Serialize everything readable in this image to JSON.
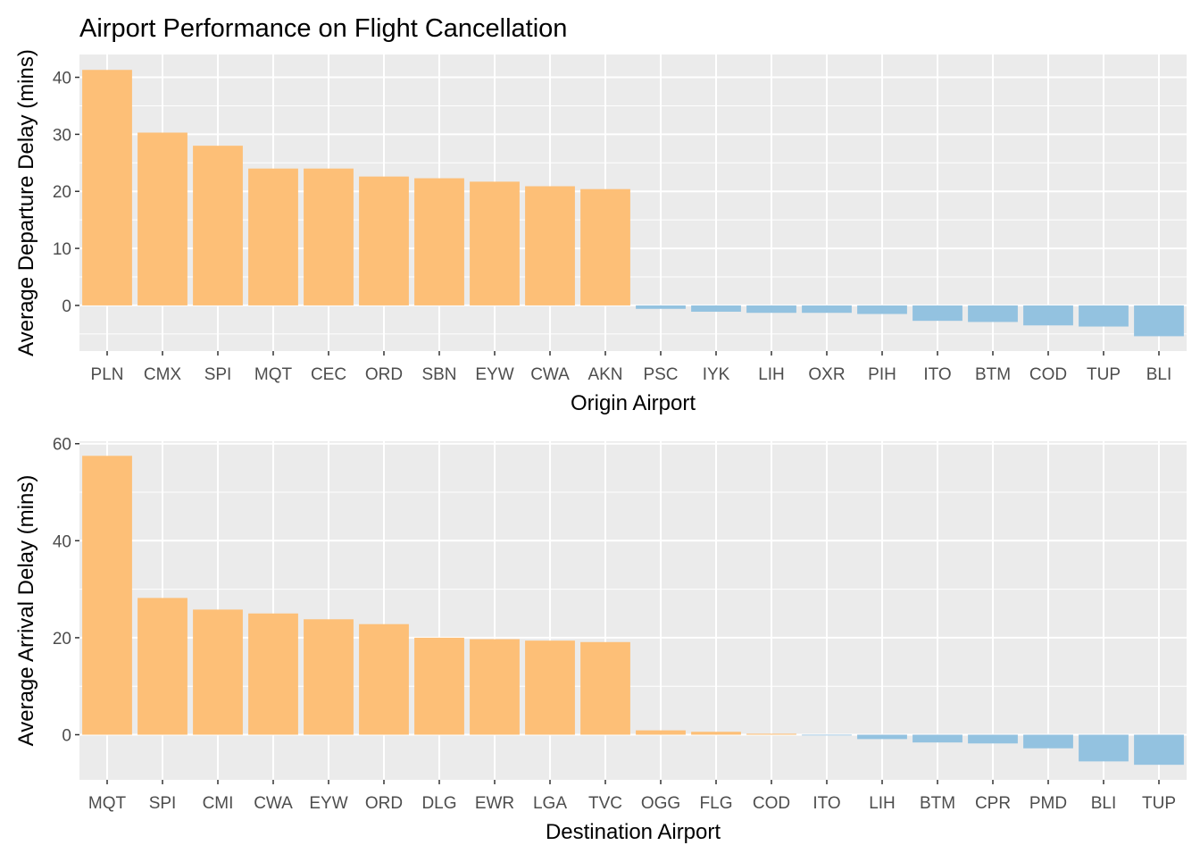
{
  "title": "Airport Performance on Flight Cancellation",
  "colors": {
    "positive": "#FDBF77",
    "negative": "#93C2E0",
    "panel_bg": "#EBEBEB",
    "grid": "#FFFFFF",
    "tick_text": "#4D4D4D"
  },
  "chart_data": [
    {
      "type": "bar",
      "xlabel": "Origin Airport",
      "ylabel": "Average Departure Delay (mins)",
      "ylim": [
        -8,
        44
      ],
      "yticks": [
        0,
        10,
        20,
        30,
        40
      ],
      "grid": true,
      "categories": [
        "PLN",
        "CMX",
        "SPI",
        "MQT",
        "CEC",
        "ORD",
        "SBN",
        "EYW",
        "CWA",
        "AKN",
        "PSC",
        "IYK",
        "LIH",
        "OXR",
        "PIH",
        "ITO",
        "BTM",
        "COD",
        "TUP",
        "BLI"
      ],
      "values": [
        41.3,
        30.3,
        28.0,
        24.0,
        24.0,
        22.6,
        22.3,
        21.7,
        20.9,
        20.4,
        -0.6,
        -1.1,
        -1.3,
        -1.3,
        -1.5,
        -2.7,
        -2.9,
        -3.5,
        -3.7,
        -5.4
      ]
    },
    {
      "type": "bar",
      "xlabel": "Destination Airport",
      "ylabel": "Average Arrival Delay (mins)",
      "ylim": [
        -9.3,
        60.5
      ],
      "yticks": [
        0,
        20,
        40,
        60
      ],
      "grid": true,
      "categories": [
        "MQT",
        "SPI",
        "CMI",
        "CWA",
        "EYW",
        "ORD",
        "DLG",
        "EWR",
        "LGA",
        "TVC",
        "OGG",
        "FLG",
        "COD",
        "ITO",
        "LIH",
        "BTM",
        "CPR",
        "PMD",
        "BLI",
        "TUP"
      ],
      "values": [
        57.5,
        28.2,
        25.8,
        25.0,
        23.8,
        22.8,
        20.0,
        19.7,
        19.4,
        19.1,
        0.9,
        0.6,
        0.2,
        -0.1,
        -0.9,
        -1.6,
        -1.8,
        -2.8,
        -5.5,
        -6.2
      ]
    }
  ]
}
